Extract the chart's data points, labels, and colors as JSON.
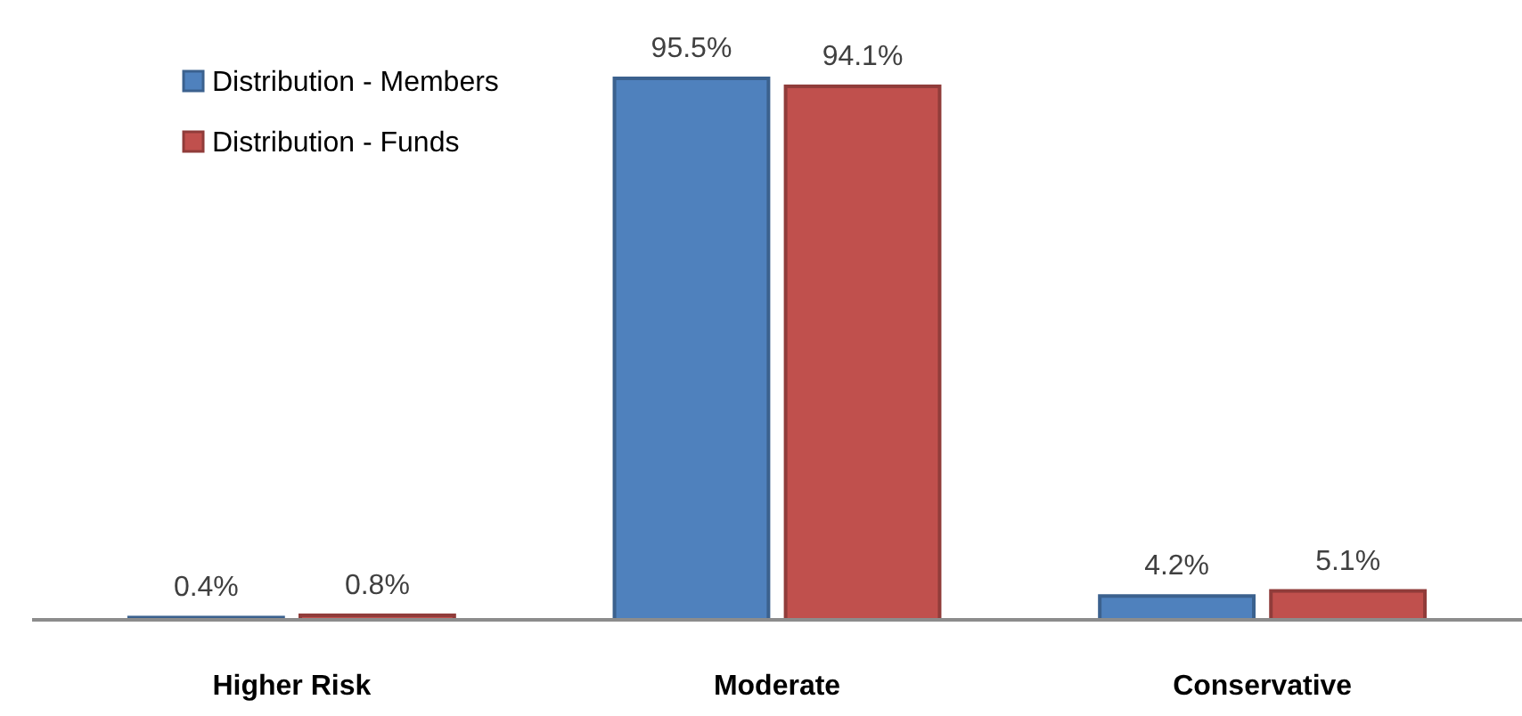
{
  "chart_data": {
    "type": "bar",
    "categories": [
      "Higher Risk",
      "Moderate",
      "Conservative"
    ],
    "series": [
      {
        "name": "Distribution - Members",
        "color": "#4f81bd",
        "values": [
          0.4,
          95.5,
          4.2
        ],
        "value_labels": [
          "0.4%",
          "95.5%",
          "4.2%"
        ]
      },
      {
        "name": "Distribution - Funds",
        "color": "#c0504d",
        "values": [
          0.8,
          94.1,
          5.1
        ],
        "value_labels": [
          "0.8%",
          "94.1%",
          "5.1%"
        ]
      }
    ],
    "legend": "top left"
  }
}
